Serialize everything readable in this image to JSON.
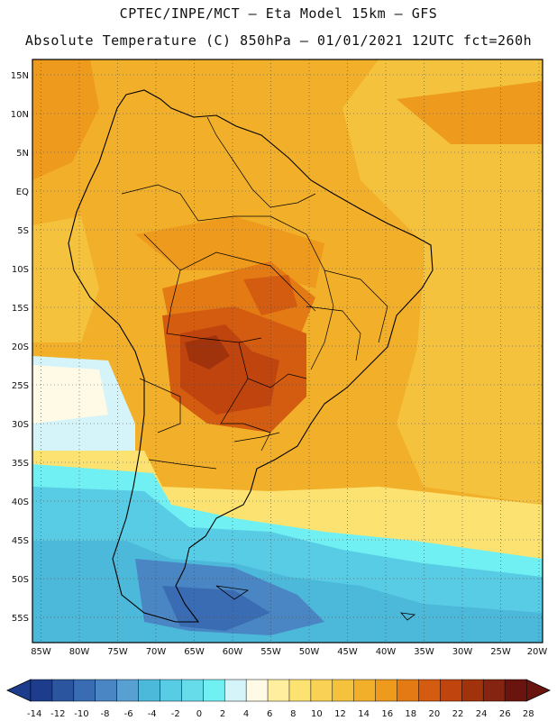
{
  "title": {
    "line1": "CPTEC/INPE/MCT –  Eta Model 15km – GFS",
    "line2": "Absolute Temperature (C) 850hPa – 01/01/2021 12UTC fct=260h"
  },
  "lat_labels": [
    "15N",
    "10N",
    "5N",
    "EQ",
    "5S",
    "10S",
    "15S",
    "20S",
    "25S",
    "30S",
    "35S",
    "40S",
    "45S",
    "50S",
    "55S"
  ],
  "lon_labels": [
    "85W",
    "80W",
    "75W",
    "70W",
    "65W",
    "60W",
    "55W",
    "50W",
    "45W",
    "40W",
    "35W",
    "30W",
    "25W",
    "20W"
  ],
  "colorbar": {
    "labels": [
      "-14",
      "-12",
      "-10",
      "-8",
      "-6",
      "-4",
      "-2",
      "0",
      "2",
      "4",
      "6",
      "8",
      "10",
      "12",
      "14",
      "16",
      "18",
      "20",
      "22",
      "24",
      "26",
      "28"
    ],
    "colors": [
      "#1e3c8c",
      "#2c55a0",
      "#3a6cb4",
      "#4a86c4",
      "#58a0d2",
      "#4cb8da",
      "#58cce4",
      "#66dcea",
      "#70f0f2",
      "#d4f4fa",
      "#fffae6",
      "#ffee9e",
      "#fce270",
      "#f9d255",
      "#f4c23c",
      "#f2b02a",
      "#ee9a1c",
      "#e37a14",
      "#d45c10",
      "#c0440e",
      "#a0320c",
      "#852410",
      "#6a1410"
    ]
  },
  "temperature_zones": {
    "ocean_pacific_north": "#f2b02a",
    "ocean_atlantic_north": "#f4c23c",
    "land_hot_core": "#c0440e",
    "south_cold": "#58a0d2"
  }
}
